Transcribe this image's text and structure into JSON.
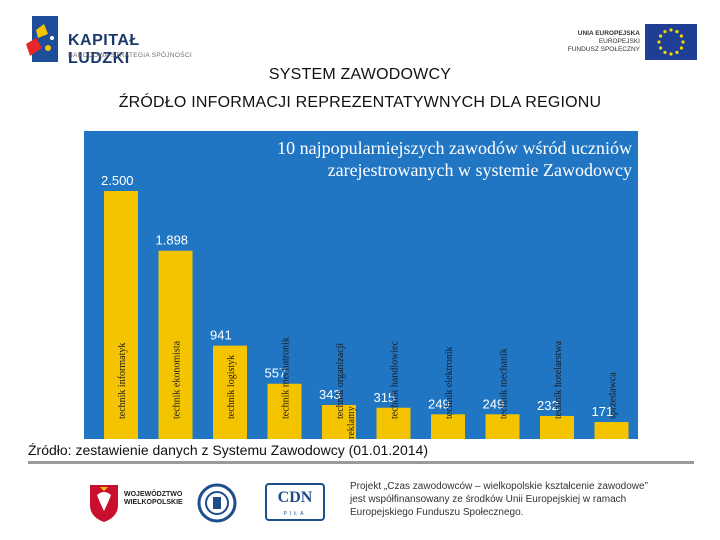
{
  "header": {
    "kapital_title": "KAPITAŁ LUDZKI",
    "kapital_subtitle": "NARODOWA STRATEGIA SPÓJNOŚCI",
    "eu_line1": "UNIA EUROPEJSKA",
    "eu_line2": "EUROPEJSKI",
    "eu_line3": "FUNDUSZ SPOŁECZNY"
  },
  "heading": {
    "line1": "SYSTEM ZAWODOWCY",
    "line2": "ŹRÓDŁO INFORMACJI REPREZENTATYWNYCH DLA REGIONU"
  },
  "chart_data": {
    "type": "bar",
    "title_line1": "10 najpopularniejszych zawodów wśród uczniów",
    "title_line2": "zarejestrowanych w systemie Zawodowcy",
    "categories": [
      "technik informatyk",
      "technik ekonomista",
      "technik logistyk",
      "technik mechatronik",
      "technik organizacji reklamy",
      "technik handlowiec",
      "technik elektronik",
      "technik mechanik",
      "technik hotelarstwa",
      "sprzedawca"
    ],
    "value_labels": [
      "2.500",
      "1.898",
      "941",
      "557",
      "343",
      "315",
      "249",
      "249",
      "232",
      "171"
    ],
    "values": [
      2500,
      1898,
      941,
      557,
      343,
      315,
      249,
      249,
      232,
      171
    ],
    "colors": {
      "background": "#2176c4",
      "bar": "#f5c400",
      "label": "#ffffff",
      "category_text": "#1a1a1a"
    }
  },
  "source_note": "Źródło: zestawienie danych z Systemu Zawodowcy (01.01.2014)",
  "footer": {
    "woj_line1": "WOJEWÓDZTWO",
    "woj_line2": "WIELKOPOLSKIE",
    "cdn_label": "CDN",
    "cdn_sub": "PIŁA",
    "project_line1": "Projekt „Czas zawodowców – wielkopolskie kształcenie zawodowe”",
    "project_line2": "jest współfinansowany ze środków Unii Europejskiej w ramach",
    "project_line3": "Europejskiego Funduszu Społecznego."
  }
}
